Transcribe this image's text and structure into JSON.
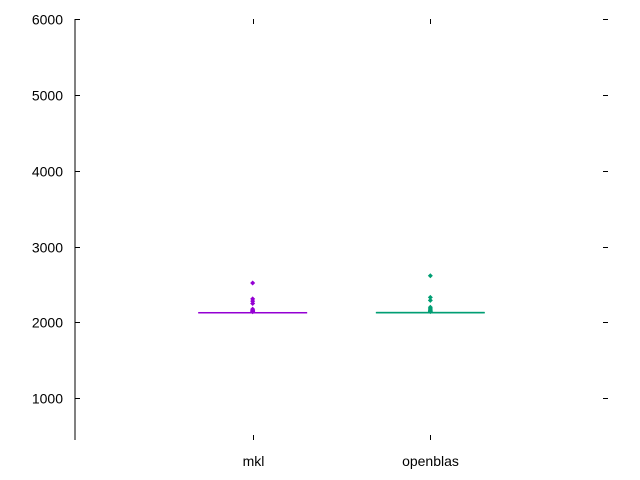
{
  "chart_data": {
    "type": "box",
    "title": "",
    "xlabel": "",
    "ylabel": "",
    "ylim": [
      450,
      6000
    ],
    "yticks": [
      1000,
      2000,
      3000,
      4000,
      5000,
      6000
    ],
    "grid": false,
    "categories": [
      "mkl",
      "openblas"
    ],
    "series": [
      {
        "category": "mkl",
        "color": "#9400d3",
        "q1": 2125,
        "median": 2128,
        "q3": 2131,
        "outliers": [
          2520,
          2310,
          2280,
          2250,
          2175,
          2160,
          2150,
          2145,
          2140
        ]
      },
      {
        "category": "openblas",
        "color": "#009e73",
        "q1": 2126,
        "median": 2129,
        "q3": 2132,
        "outliers": [
          2615,
          2330,
          2290,
          2200,
          2180,
          2165,
          2155,
          2148,
          2142
        ]
      }
    ]
  }
}
